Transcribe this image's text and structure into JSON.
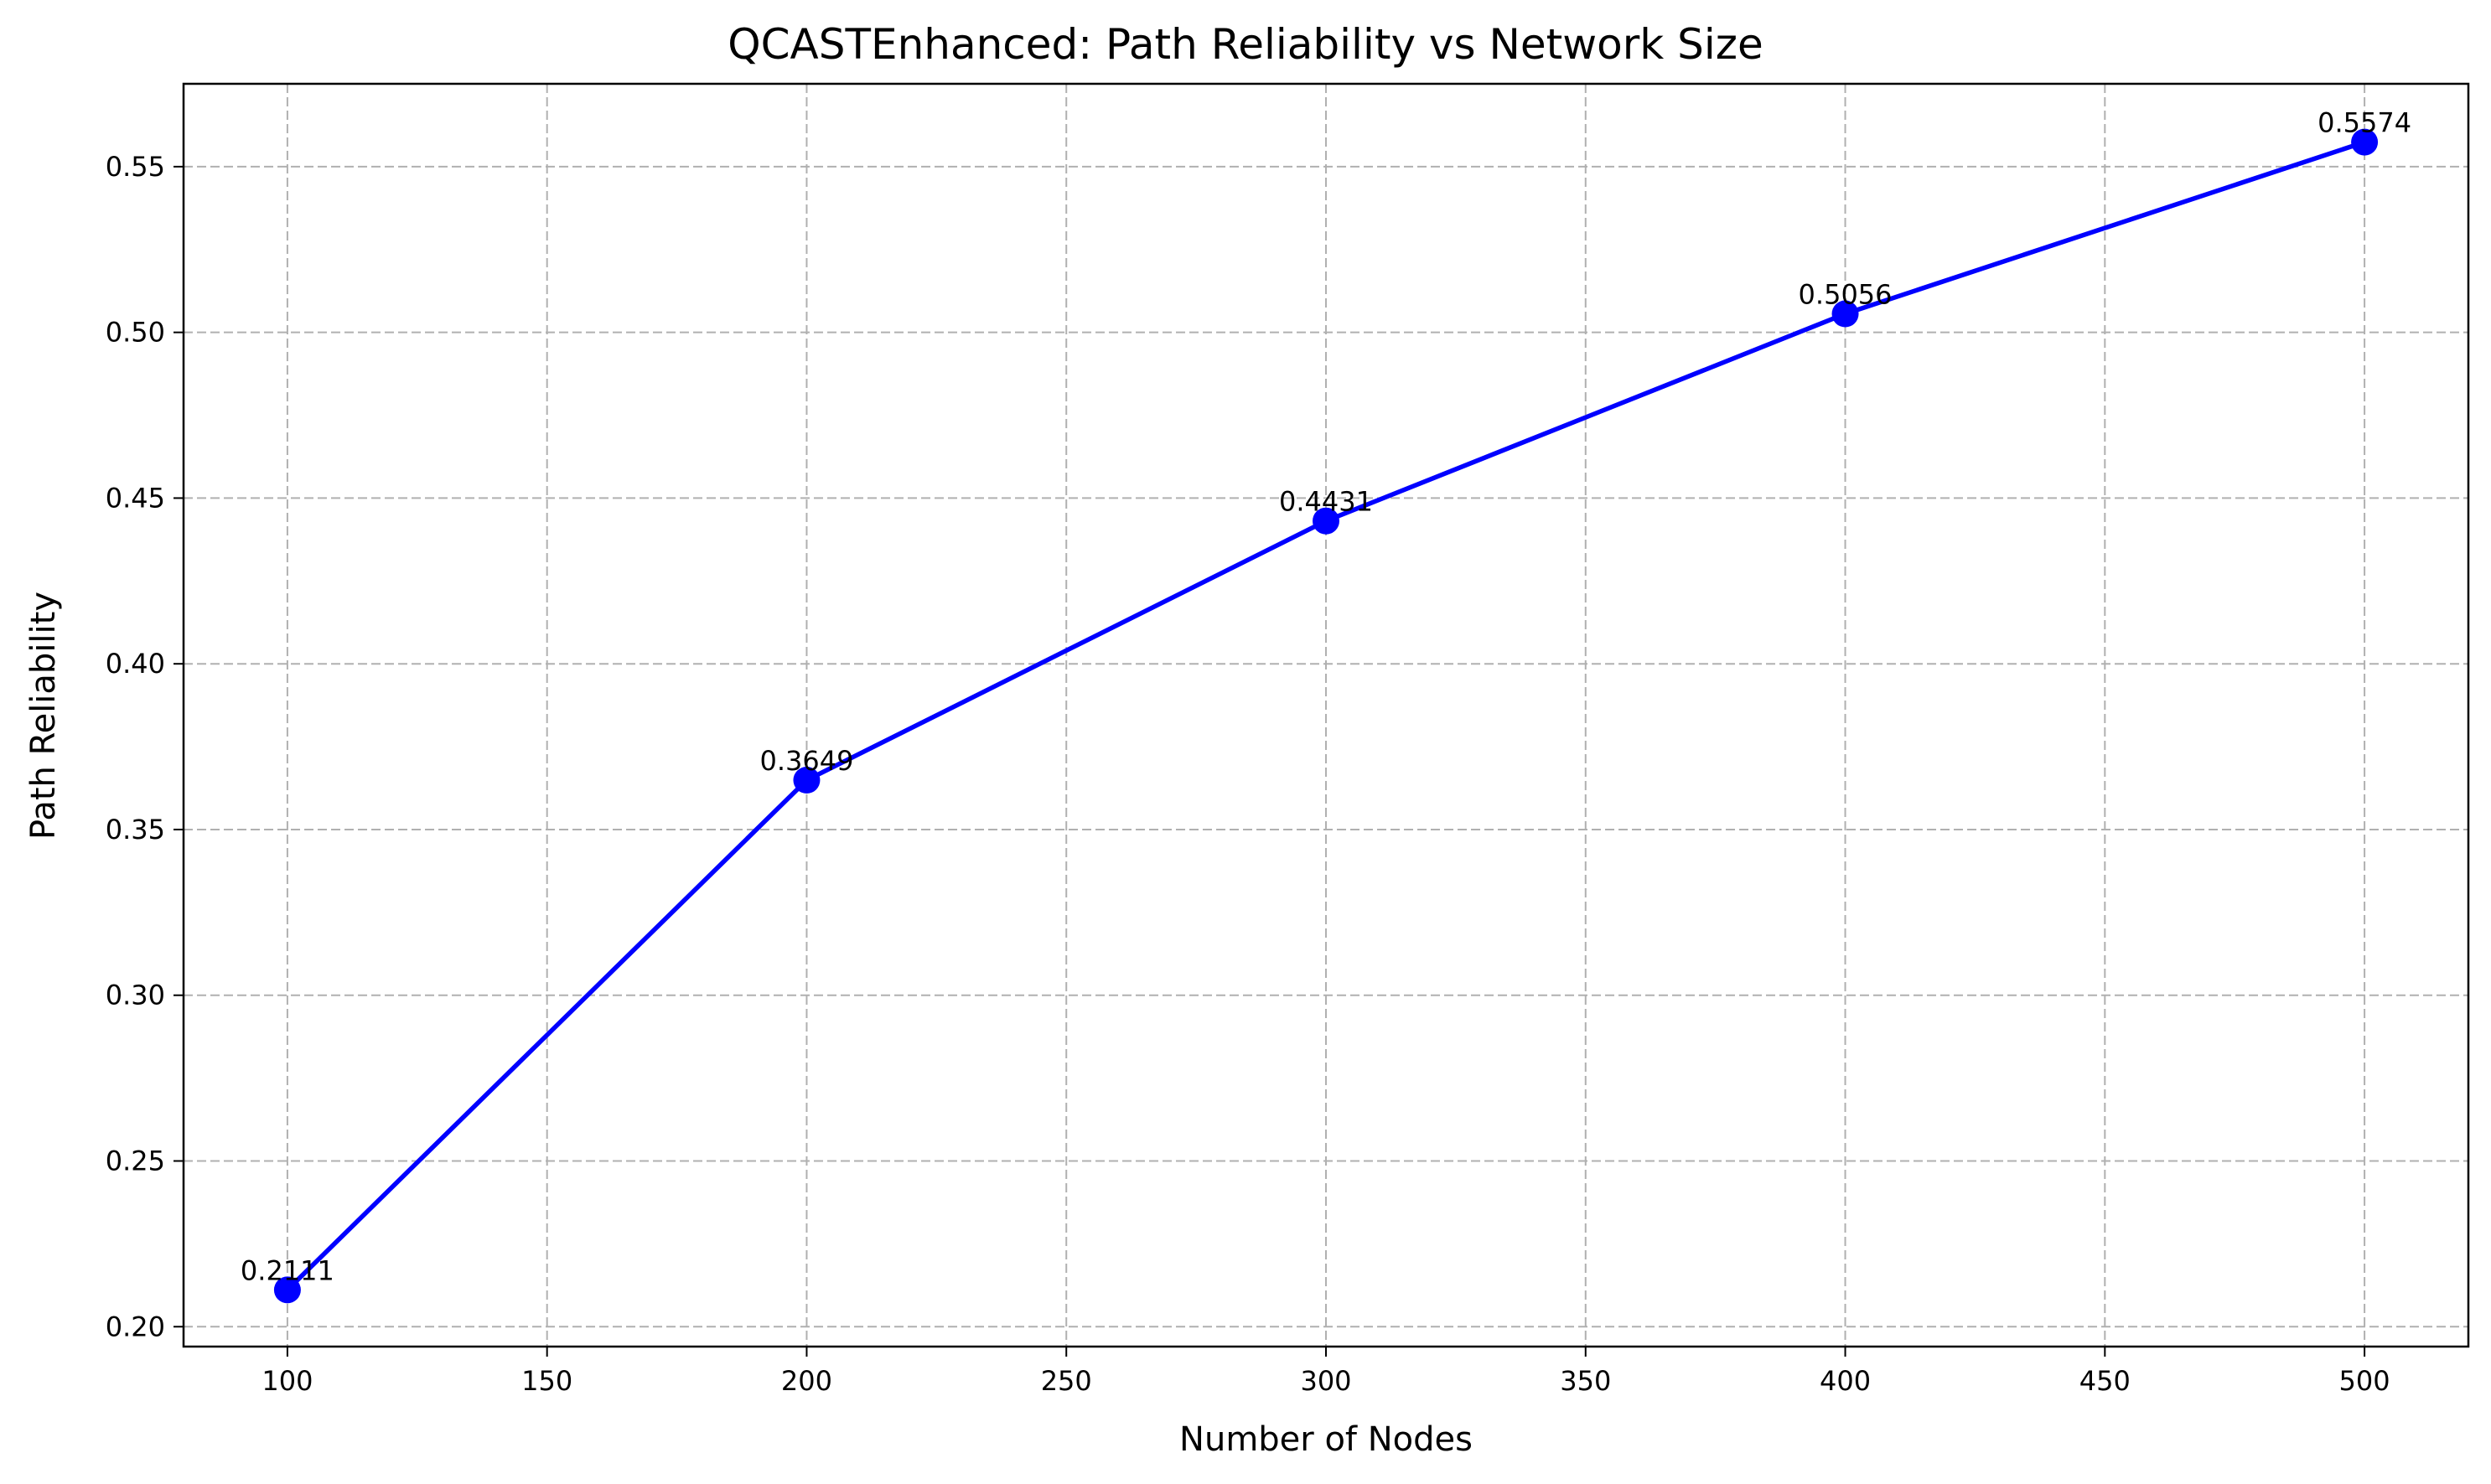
{
  "chart_data": {
    "type": "line",
    "title": "QCASTEnhanced: Path Reliability vs Network Size",
    "xlabel": "Number of Nodes",
    "ylabel": "Path Reliability",
    "x": [
      100,
      200,
      300,
      400,
      500
    ],
    "series": [
      {
        "values": [
          0.2111,
          0.3649,
          0.4431,
          0.5056,
          0.5574
        ],
        "color": "#0000ff",
        "marker": "circle"
      }
    ],
    "data_labels": [
      "0.2111",
      "0.3649",
      "0.4431",
      "0.5056",
      "0.5574"
    ],
    "xlim": [
      80,
      520
    ],
    "ylim": [
      0.194,
      0.575
    ],
    "xticks": [
      100,
      150,
      200,
      250,
      300,
      350,
      400,
      450,
      500
    ],
    "xtick_labels": [
      "100",
      "150",
      "200",
      "250",
      "300",
      "350",
      "400",
      "450",
      "500"
    ],
    "yticks": [
      0.2,
      0.25,
      0.3,
      0.35,
      0.4,
      0.45,
      0.5,
      0.55
    ],
    "ytick_labels": [
      "0.20",
      "0.25",
      "0.30",
      "0.35",
      "0.40",
      "0.45",
      "0.50",
      "0.55"
    ],
    "grid": true,
    "legend": "none"
  }
}
